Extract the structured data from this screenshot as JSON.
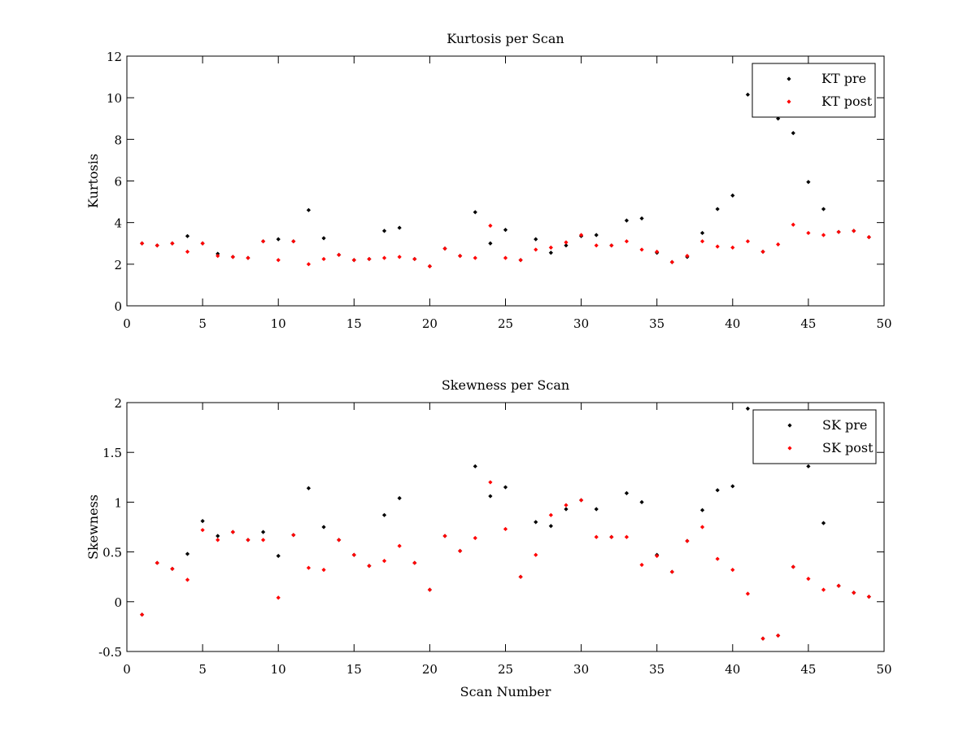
{
  "chart_data": [
    {
      "type": "scatter",
      "title": "Kurtosis per Scan",
      "xlabel": "",
      "ylabel": "Kurtosis",
      "xlim": [
        0,
        50
      ],
      "ylim": [
        0,
        12
      ],
      "xticks": [
        0,
        5,
        10,
        15,
        20,
        25,
        30,
        35,
        40,
        45,
        50
      ],
      "yticks": [
        0,
        2,
        4,
        6,
        8,
        10,
        12
      ],
      "xtick_labels": [
        "0",
        "5",
        "10",
        "15",
        "20",
        "25",
        "30",
        "35",
        "40",
        "45",
        "50"
      ],
      "ytick_labels": [
        "0",
        "2",
        "4",
        "6",
        "8",
        "10",
        "12"
      ],
      "grid": false,
      "legend_position": "top-right",
      "series": [
        {
          "name": "KT pre",
          "color": "#000000",
          "x": [
            1,
            2,
            3,
            4,
            5,
            6,
            7,
            8,
            9,
            10,
            11,
            12,
            13,
            14,
            15,
            16,
            17,
            18,
            19,
            20,
            21,
            22,
            23,
            24,
            25,
            26,
            27,
            28,
            29,
            30,
            31,
            32,
            33,
            34,
            35,
            36,
            37,
            38,
            39,
            40,
            41,
            42,
            43,
            44,
            45,
            46,
            47,
            48,
            49
          ],
          "y": [
            3.0,
            2.9,
            3.0,
            3.35,
            3.0,
            2.5,
            2.35,
            2.3,
            3.1,
            3.2,
            3.1,
            4.6,
            3.25,
            2.45,
            2.2,
            2.25,
            3.6,
            3.75,
            2.25,
            1.9,
            2.75,
            2.4,
            4.5,
            3.0,
            3.65,
            2.2,
            3.2,
            2.55,
            2.9,
            3.35,
            3.4,
            2.9,
            4.1,
            4.2,
            2.55,
            2.1,
            2.35,
            3.5,
            4.65,
            5.3,
            10.15,
            2.6,
            9.0,
            8.3,
            5.95,
            4.65,
            3.55,
            3.6,
            3.3
          ]
        },
        {
          "name": "KT post",
          "color": "#ff0000",
          "x": [
            1,
            2,
            3,
            4,
            5,
            6,
            7,
            8,
            9,
            10,
            11,
            12,
            13,
            14,
            15,
            16,
            17,
            18,
            19,
            20,
            21,
            22,
            23,
            24,
            25,
            26,
            27,
            28,
            29,
            30,
            31,
            32,
            33,
            34,
            35,
            36,
            37,
            38,
            39,
            40,
            41,
            42,
            43,
            44,
            45,
            46,
            47,
            48,
            49
          ],
          "y": [
            3.0,
            2.9,
            3.0,
            2.6,
            3.0,
            2.4,
            2.35,
            2.3,
            3.1,
            2.2,
            3.1,
            2.0,
            2.25,
            2.45,
            2.2,
            2.25,
            2.3,
            2.35,
            2.25,
            1.9,
            2.75,
            2.4,
            2.3,
            3.85,
            2.3,
            2.2,
            2.7,
            2.8,
            3.05,
            3.4,
            2.9,
            2.9,
            3.1,
            2.7,
            2.6,
            2.1,
            2.4,
            3.1,
            2.85,
            2.8,
            3.1,
            2.6,
            2.95,
            3.9,
            3.5,
            3.4,
            3.55,
            3.6,
            3.3
          ]
        }
      ]
    },
    {
      "type": "scatter",
      "title": "Skewness per Scan",
      "xlabel": "Scan Number",
      "ylabel": "Skewness",
      "xlim": [
        0,
        50
      ],
      "ylim": [
        -0.5,
        2
      ],
      "xticks": [
        0,
        5,
        10,
        15,
        20,
        25,
        30,
        35,
        40,
        45,
        50
      ],
      "yticks": [
        -0.5,
        0,
        0.5,
        1,
        1.5,
        2
      ],
      "xtick_labels": [
        "0",
        "5",
        "10",
        "15",
        "20",
        "25",
        "30",
        "35",
        "40",
        "45",
        "50"
      ],
      "ytick_labels": [
        "-0.5",
        "0",
        "0.5",
        "1",
        "1.5",
        "2"
      ],
      "grid": false,
      "legend_position": "top-right",
      "series": [
        {
          "name": "SK pre",
          "color": "#000000",
          "x": [
            1,
            2,
            3,
            4,
            5,
            6,
            7,
            8,
            9,
            10,
            11,
            12,
            13,
            14,
            15,
            16,
            17,
            18,
            19,
            20,
            21,
            22,
            23,
            24,
            25,
            26,
            27,
            28,
            29,
            30,
            31,
            32,
            33,
            34,
            35,
            36,
            37,
            38,
            39,
            40,
            41,
            42,
            43,
            44,
            45,
            46,
            47,
            48,
            49
          ],
          "y": [
            -0.13,
            0.39,
            0.33,
            0.48,
            0.81,
            0.66,
            0.7,
            0.62,
            0.7,
            0.46,
            0.67,
            1.14,
            0.75,
            0.62,
            0.47,
            0.36,
            0.87,
            1.04,
            0.39,
            0.12,
            0.66,
            0.51,
            1.36,
            1.06,
            1.15,
            0.25,
            0.8,
            0.76,
            0.93,
            1.02,
            0.93,
            0.65,
            1.09,
            1.0,
            0.47,
            0.3,
            0.61,
            0.92,
            1.12,
            1.16,
            1.94,
            -0.37,
            -0.34,
            0.35,
            1.36,
            0.79,
            0.16,
            0.09,
            0.05
          ]
        },
        {
          "name": "SK post",
          "color": "#ff0000",
          "x": [
            1,
            2,
            3,
            4,
            5,
            6,
            7,
            8,
            9,
            10,
            11,
            12,
            13,
            14,
            15,
            16,
            17,
            18,
            19,
            20,
            21,
            22,
            23,
            24,
            25,
            26,
            27,
            28,
            29,
            30,
            31,
            32,
            33,
            34,
            35,
            36,
            37,
            38,
            39,
            40,
            41,
            42,
            43,
            44,
            45,
            46,
            47,
            48,
            49
          ],
          "y": [
            -0.13,
            0.39,
            0.33,
            0.22,
            0.72,
            0.62,
            0.7,
            0.62,
            0.62,
            0.04,
            0.67,
            0.34,
            0.32,
            0.62,
            0.47,
            0.36,
            0.41,
            0.56,
            0.39,
            0.12,
            0.66,
            0.51,
            0.64,
            1.2,
            0.73,
            0.25,
            0.47,
            0.87,
            0.97,
            1.02,
            0.65,
            0.65,
            0.65,
            0.37,
            0.46,
            0.3,
            0.61,
            0.75,
            0.43,
            0.32,
            0.08,
            -0.37,
            -0.34,
            0.35,
            0.23,
            0.12,
            0.16,
            0.09,
            0.05
          ]
        }
      ]
    }
  ]
}
